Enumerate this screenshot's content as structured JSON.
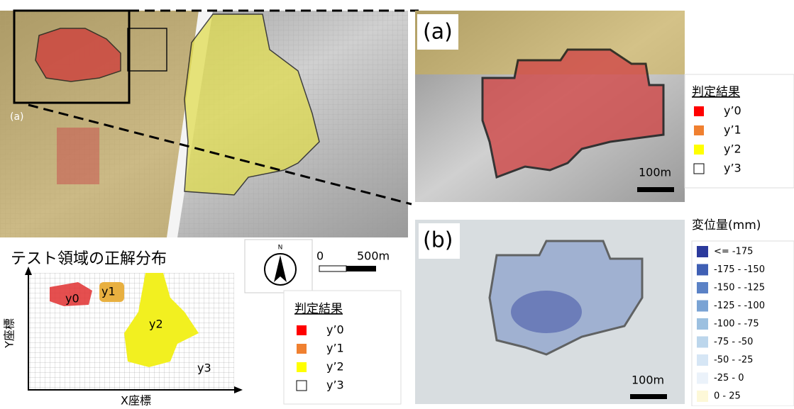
{
  "main_map": {
    "inset_label": "(a)"
  },
  "scale_bar": {
    "start": "0",
    "end": "500m"
  },
  "north_arrow": {
    "label": "N"
  },
  "ground_truth": {
    "title": "テスト領域の正解分布",
    "x_label": "X座標",
    "y_label": "Y座標",
    "regions": [
      "y0",
      "y1",
      "y2",
      "y3"
    ]
  },
  "legend_main": {
    "title": "判定結果",
    "items": [
      {
        "color": "#ff0000",
        "label": "y’0"
      },
      {
        "color": "#f08030",
        "label": "y’1"
      },
      {
        "color": "#ffff00",
        "label": "y’2"
      },
      {
        "color": "#ffffff",
        "label": "y’3"
      }
    ]
  },
  "panel_a": {
    "label": "(a)",
    "scale": "100m"
  },
  "legend_a": {
    "title": "判定結果",
    "items": [
      {
        "color": "#ff0000",
        "label": "y’0"
      },
      {
        "color": "#f08030",
        "label": "y’1"
      },
      {
        "color": "#ffff00",
        "label": "y’2"
      },
      {
        "color": "#ffffff",
        "label": "y’3"
      }
    ]
  },
  "panel_b": {
    "label": "(b)",
    "scale": "100m"
  },
  "displacement_legend": {
    "title": "変位量(mm)",
    "items": [
      {
        "color": "#2b3a9c",
        "label": "<= -175"
      },
      {
        "color": "#3f5fb4",
        "label": "-175 - -150"
      },
      {
        "color": "#5b82c6",
        "label": "-150 - -125"
      },
      {
        "color": "#7aa3d4",
        "label": "-125 - -100"
      },
      {
        "color": "#9cc0e0",
        "label": "-100 - -75"
      },
      {
        "color": "#bcd6ec",
        "label": "-75 - -50"
      },
      {
        "color": "#d6e6f5",
        "label": "-50 - -25"
      },
      {
        "color": "#ebf2fa",
        "label": "-25 - 0"
      },
      {
        "color": "#fdf8d8",
        "label": "0 - 25"
      }
    ]
  }
}
